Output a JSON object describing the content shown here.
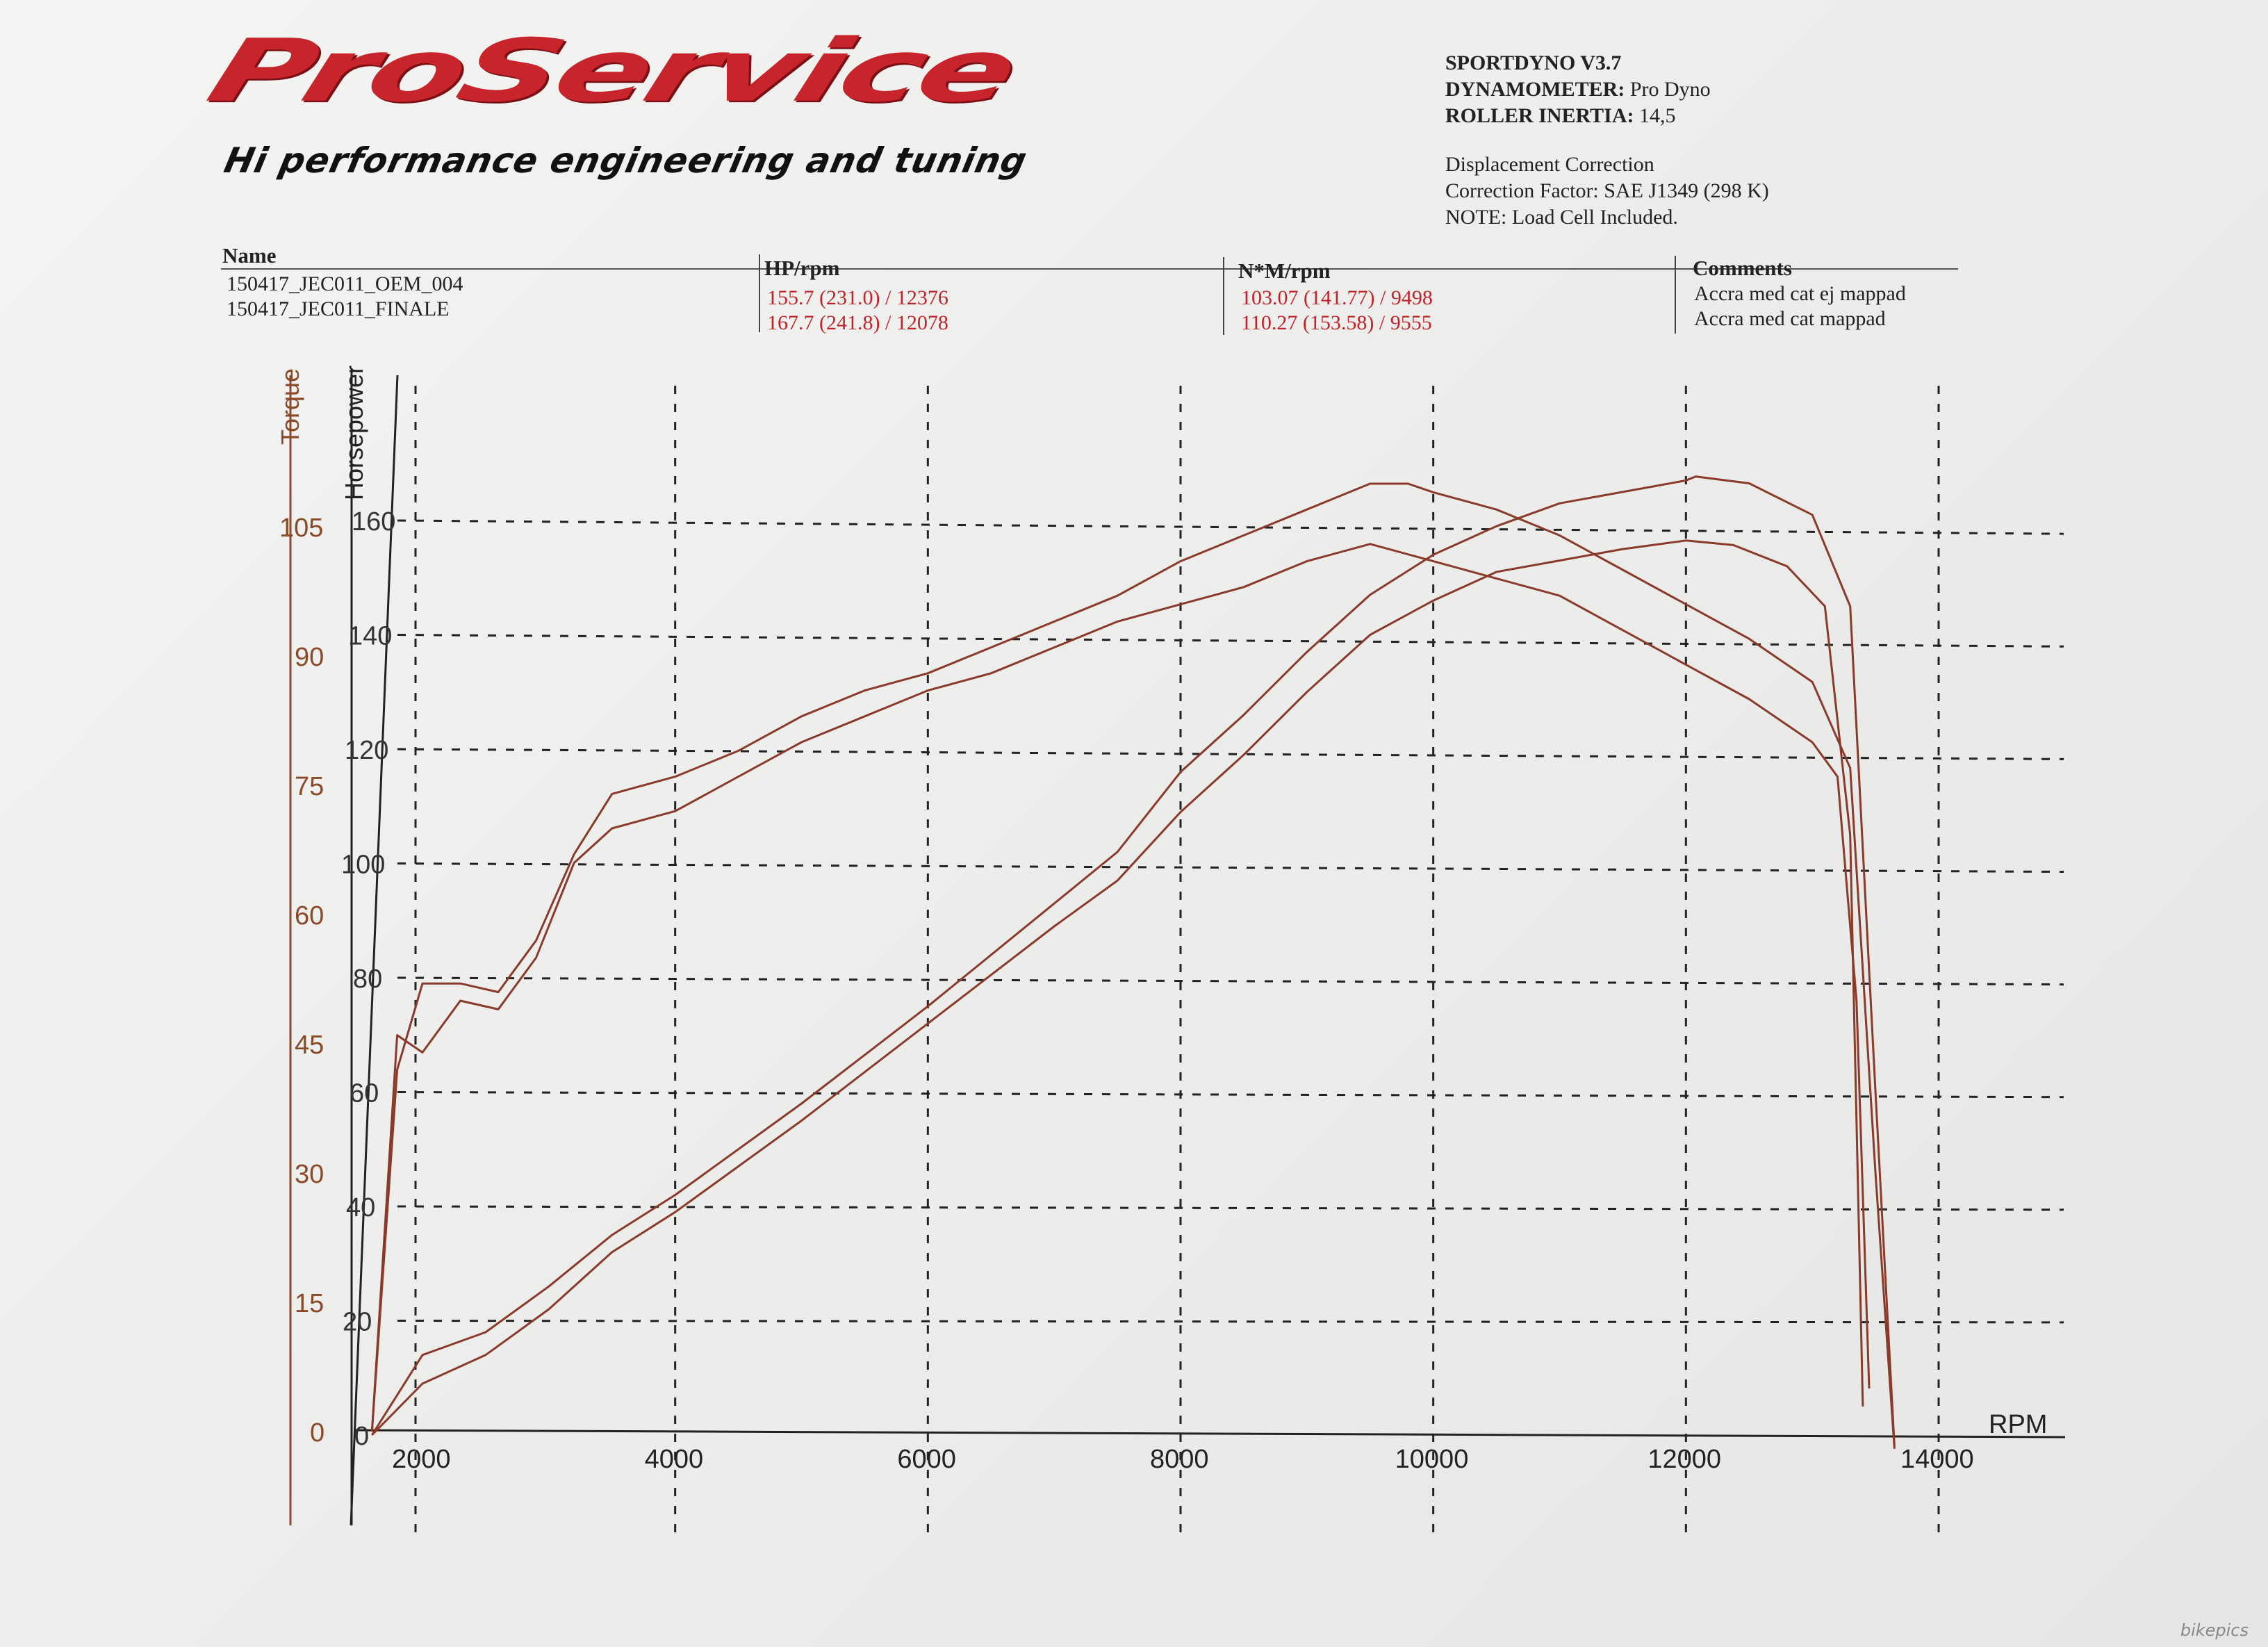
{
  "logo": {
    "title": "ProService",
    "subtitle": "Hi performance engineering and tuning"
  },
  "info": {
    "sportdyno_label": "SPORTDYNO V3.7",
    "dynamometer_label": "DYNAMOMETER:",
    "dynamometer_value": "Pro Dyno",
    "inertia_label": "ROLLER INERTIA:",
    "inertia_value": "14,5",
    "displacement": "Displacement Correction",
    "correction": "Correction Factor: SAE J1349 (298 K)",
    "note": "NOTE: Load Cell Included."
  },
  "table": {
    "headers": {
      "name": "Name",
      "hp": "HP/rpm",
      "nm": "N*M/rpm",
      "comments": "Comments"
    },
    "rows": [
      {
        "name": "150417_JEC011_OEM_004",
        "hp": "155.7 (231.0) / 12376",
        "nm": "103.07 (141.77) / 9498",
        "comment": "Accra med cat ej mappad"
      },
      {
        "name": "150417_JEC011_FINALE",
        "hp": "167.7 (241.8) / 12078",
        "nm": "110.27 (153.58) / 9555",
        "comment": "Accra med cat  mappad"
      }
    ]
  },
  "chart_data": {
    "type": "line",
    "xlabel": "RPM",
    "ylabel_left": "Torque",
    "ylabel_right": "Horsepower",
    "xlim": [
      1500,
      14500
    ],
    "x_ticks": [
      "2000",
      "4000",
      "6000",
      "8000",
      "10000",
      "12000",
      "14000"
    ],
    "hp_ticks": [
      "0",
      "20",
      "40",
      "60",
      "80",
      "100",
      "120",
      "140",
      "160"
    ],
    "torque_ticks": [
      "0",
      "15",
      "30",
      "45",
      "60",
      "75",
      "90",
      "105"
    ],
    "hp_lim": [
      0,
      170
    ],
    "torque_lim": [
      0,
      110
    ],
    "grid": true,
    "series": [
      {
        "kind": "torque",
        "color": "#8a3a2a",
        "x": [
          1600,
          1800,
          2000,
          2300,
          2600,
          2900,
          3200,
          3500,
          4000,
          4500,
          5000,
          5500,
          6000,
          6500,
          7000,
          7500,
          8000,
          8500,
          9000,
          9500,
          10000,
          10500,
          11000,
          11500,
          12000,
          12500,
          13000,
          13200,
          13350,
          13450
        ],
        "y": [
          0,
          46,
          44,
          50,
          49,
          55,
          66,
          70,
          72,
          76,
          80,
          83,
          86,
          88,
          91,
          94,
          96,
          98,
          101,
          103,
          101,
          99,
          97,
          93,
          89,
          85,
          80,
          76,
          50,
          5
        ]
      },
      {
        "kind": "torque",
        "color": "#8a3a2a",
        "x": [
          1600,
          1800,
          2000,
          2300,
          2600,
          2900,
          3200,
          3500,
          4000,
          4500,
          5000,
          5500,
          6000,
          6500,
          7000,
          7500,
          8000,
          8500,
          9000,
          9500,
          9800,
          10000,
          10500,
          11000,
          11500,
          12000,
          12500,
          13000,
          13300,
          13500,
          13650
        ],
        "y": [
          0,
          42,
          52,
          52,
          51,
          57,
          67,
          74,
          76,
          79,
          83,
          86,
          88,
          91,
          94,
          97,
          101,
          104,
          107,
          110,
          110,
          109,
          107,
          104,
          100,
          96,
          92,
          87,
          77,
          30,
          -2
        ]
      },
      {
        "kind": "hp",
        "color": "#8a3a2a",
        "x": [
          1600,
          2000,
          2500,
          3000,
          3500,
          4000,
          5000,
          6000,
          7000,
          7500,
          8000,
          8500,
          9000,
          9500,
          10000,
          10500,
          11000,
          11500,
          12000,
          12376,
          12800,
          13100,
          13300,
          13400
        ],
        "y": [
          0,
          9,
          14,
          22,
          32,
          39,
          55,
          72,
          89,
          97,
          109,
          119,
          130,
          140,
          146,
          151,
          153,
          155,
          156.5,
          155.7,
          152,
          145,
          105,
          5
        ]
      },
      {
        "kind": "hp",
        "color": "#8a3a2a",
        "x": [
          1600,
          2000,
          2500,
          3000,
          3500,
          4000,
          5000,
          6000,
          7000,
          7500,
          8000,
          8500,
          9000,
          9500,
          10000,
          10500,
          11000,
          11500,
          12000,
          12078,
          12500,
          13000,
          13300,
          13500,
          13650
        ],
        "y": [
          0,
          14,
          18,
          26,
          35,
          42,
          58,
          75,
          93,
          102,
          116,
          126,
          137,
          147,
          154,
          159,
          163,
          165,
          167,
          167.7,
          166.5,
          161,
          145,
          60,
          -2
        ]
      }
    ]
  },
  "watermark": "bikepics"
}
